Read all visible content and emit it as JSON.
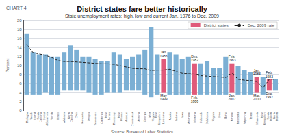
{
  "chart_data": {
    "type": "bar",
    "title": "District states fare better historically",
    "subtitle": "State unemployment rates: high, low and current Jan. 1976 to Dec. 2009",
    "chart_label": "CHART 4",
    "source": "Source: Bureau of Labor Statistics",
    "ylabel": "Percent",
    "ylim": [
      0,
      20
    ],
    "yticks": [
      0,
      2,
      4,
      6,
      8,
      10,
      12,
      14,
      16,
      18,
      20
    ],
    "grid": true,
    "legend": "upper right",
    "categories": [
      "Michigan",
      "Rhode\nIsland",
      "South\nCarolina",
      "District\nof Columbia",
      "Florida",
      "Illinois",
      "Alabama",
      "North\nCarolina",
      "Ohio",
      "Kentucky",
      "Oregon",
      "Tennessee",
      "California",
      "New\nJersey",
      "Mississippi",
      "New\nMexico",
      "Missouri",
      "Connecticut",
      "Arizona",
      "Georgia",
      "West\nVirginia",
      "New\nHampshire",
      "Louisiana",
      "Alaska",
      "Indiana",
      "Iowa",
      "Arkansas",
      "Montana",
      "Colorado",
      "Oklahoma",
      "Virginia",
      "Utah",
      "Idaho",
      "Kansas",
      "Nebraska",
      "Wyoming",
      "Texas",
      "Minnesota",
      "New\nHampshire",
      "South\nDakota",
      "North\nDakota"
    ],
    "series": [
      {
        "name": "District states",
        "type": "bar",
        "color": "#e05a7a",
        "highs": [
          17.0,
          13.0,
          12.5,
          12.5,
          12.0,
          12.0,
          13.0,
          14.5,
          13.5,
          12.0,
          12.0,
          11.5,
          11.0,
          11.0,
          13.0,
          12.5,
          11.5,
          12.0,
          12.5,
          13.5,
          18.5,
          12.5,
          11.5,
          13.0,
          12.5,
          11.5,
          12.0,
          10.5,
          10.5,
          11.0,
          9.5,
          9.5,
          12.0,
          10.5,
          10.0,
          9.0,
          8.5,
          7.5,
          7.5,
          7.0,
          7.0
        ],
        "lows": [
          3.5,
          3.5,
          3.5,
          4.0,
          3.5,
          3.5,
          4.5,
          4.5,
          4.5,
          4.5,
          4.0,
          3.5,
          3.5,
          4.0,
          4.0,
          4.0,
          4.5,
          4.5,
          4.5,
          3.5,
          3.0,
          3.5,
          4.0,
          3.5,
          3.5,
          3.5,
          3.5,
          3.5,
          3.5,
          3.5,
          3.5,
          3.5,
          3.5,
          4.0,
          3.5,
          3.5,
          3.5,
          4.0,
          3.5,
          4.5,
          4.5
        ],
        "colors": [
          "#7bafd4",
          "#7bafd4",
          "#7bafd4",
          "#7bafd4",
          "#7bafd4",
          "#7bafd4",
          "#7bafd4",
          "#7bafd4",
          "#7bafd4",
          "#7bafd4",
          "#7bafd4",
          "#7bafd4",
          "#7bafd4",
          "#7bafd4",
          "#7bafd4",
          "#7bafd4",
          "#7bafd4",
          "#7bafd4",
          "#7bafd4",
          "#7bafd4",
          "#7bafd4",
          "#7bafd4",
          "#e05a7a",
          "#7bafd4",
          "#7bafd4",
          "#7bafd4",
          "#7bafd4",
          "#e05a7a",
          "#7bafd4",
          "#7bafd4",
          "#7bafd4",
          "#7bafd4",
          "#7bafd4",
          "#e05a7a",
          "#7bafd4",
          "#7bafd4",
          "#7bafd4",
          "#e05a7a",
          "#7bafd4",
          "#e05a7a",
          "#7bafd4"
        ]
      },
      {
        "name": "Dec. 2009 rate",
        "type": "line",
        "color": "#222222",
        "line_style": "dashed",
        "values": [
          14.6,
          12.9,
          12.6,
          12.3,
          11.8,
          11.1,
          10.9,
          10.9,
          10.8,
          10.7,
          10.6,
          10.5,
          10.4,
          10.4,
          10.3,
          10.0,
          9.7,
          9.4,
          9.3,
          9.3,
          8.9,
          9.0,
          9.0,
          9.2,
          8.7,
          8.3,
          8.2,
          8.1,
          7.8,
          7.7,
          7.6,
          7.5,
          7.4,
          8.3,
          7.0,
          6.8,
          6.7,
          6.5,
          5.0,
          7.0,
          7.0
        ]
      }
    ],
    "annotations": [
      {
        "category": "Louisiana",
        "high": "Jan.\n1983",
        "low": "May\n1999"
      },
      {
        "category": "Montana",
        "high": "Dec.\n1982",
        "low": "Feb.\n1999"
      },
      {
        "category": "Kansas",
        "high": "Feb.\n1983",
        "low": "Jan.\n2007"
      },
      {
        "category": "Minnesota",
        "high": "Jan.\n1983",
        "low": "Mar.\n2000"
      },
      {
        "category": "South\nDakota",
        "high": "Feb.\n1983",
        "low": "Dec.\n1997"
      }
    ]
  }
}
